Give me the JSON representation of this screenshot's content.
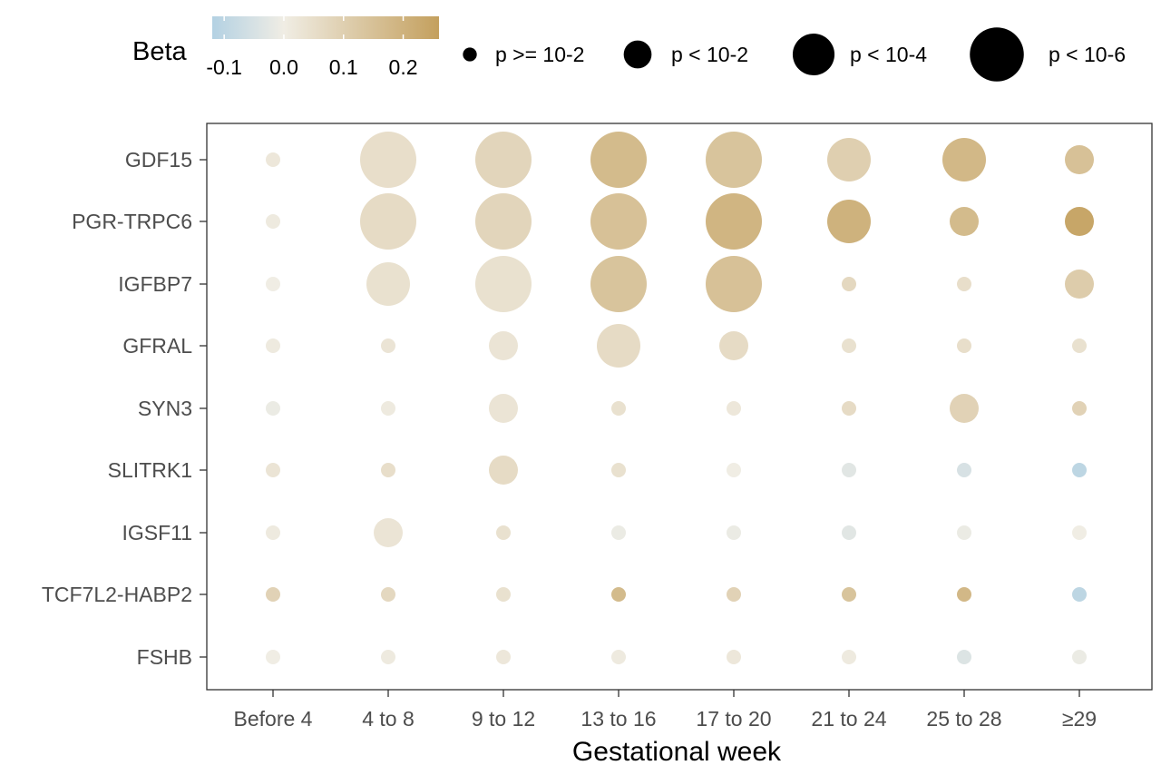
{
  "chart_data": {
    "type": "scatter",
    "xlabel": "Gestational week",
    "ylabel": "",
    "categories_x": [
      "Before 4",
      "4 to 8",
      "9 to 12",
      "13 to 16",
      "17 to 20",
      "21 to 24",
      "25 to 28",
      "≥29"
    ],
    "categories_y": [
      "GDF15",
      "PGR-TRPC6",
      "IGFBP7",
      "GFRAL",
      "SYN3",
      "SLITRK1",
      "IGSF11",
      "TCF7L2-HABP2",
      "FSHB"
    ],
    "grid": false,
    "color_legend": {
      "title": "Beta",
      "ticks": [
        "-0.1",
        "0.0",
        "0.1",
        "0.2"
      ],
      "tick_values": [
        -0.1,
        0.0,
        0.1,
        0.2
      ],
      "range": [
        -0.12,
        0.26
      ],
      "low_color": "#b3d1e3",
      "mid_color": "#f0ede4",
      "high_color": "#c4a05e"
    },
    "size_legend": {
      "levels": [
        1,
        2,
        3,
        4
      ],
      "labels": [
        "p >= 10-2",
        "p < 10-2",
        "p < 10-4",
        "p < 10-6"
      ]
    },
    "points": [
      {
        "gene": "GDF15",
        "week": "Before 4",
        "beta": 0.02,
        "p_level": 1
      },
      {
        "gene": "GDF15",
        "week": "4 to 8",
        "beta": 0.05,
        "p_level": 4
      },
      {
        "gene": "GDF15",
        "week": "9 to 12",
        "beta": 0.08,
        "p_level": 4
      },
      {
        "gene": "GDF15",
        "week": "13 to 16",
        "beta": 0.17,
        "p_level": 4
      },
      {
        "gene": "GDF15",
        "week": "17 to 20",
        "beta": 0.14,
        "p_level": 4
      },
      {
        "gene": "GDF15",
        "week": "21 to 24",
        "beta": 0.1,
        "p_level": 3
      },
      {
        "gene": "GDF15",
        "week": "25 to 28",
        "beta": 0.18,
        "p_level": 3
      },
      {
        "gene": "GDF15",
        "week": "≥29",
        "beta": 0.15,
        "p_level": 2
      },
      {
        "gene": "PGR-TRPC6",
        "week": "Before 4",
        "beta": 0.01,
        "p_level": 1
      },
      {
        "gene": "PGR-TRPC6",
        "week": "4 to 8",
        "beta": 0.06,
        "p_level": 4
      },
      {
        "gene": "PGR-TRPC6",
        "week": "9 to 12",
        "beta": 0.08,
        "p_level": 4
      },
      {
        "gene": "PGR-TRPC6",
        "week": "13 to 16",
        "beta": 0.15,
        "p_level": 4
      },
      {
        "gene": "PGR-TRPC6",
        "week": "17 to 20",
        "beta": 0.19,
        "p_level": 4
      },
      {
        "gene": "PGR-TRPC6",
        "week": "21 to 24",
        "beta": 0.2,
        "p_level": 3
      },
      {
        "gene": "PGR-TRPC6",
        "week": "25 to 28",
        "beta": 0.17,
        "p_level": 2
      },
      {
        "gene": "PGR-TRPC6",
        "week": "≥29",
        "beta": 0.24,
        "p_level": 2
      },
      {
        "gene": "IGFBP7",
        "week": "Before 4",
        "beta": 0.0,
        "p_level": 1
      },
      {
        "gene": "IGFBP7",
        "week": "4 to 8",
        "beta": 0.04,
        "p_level": 3
      },
      {
        "gene": "IGFBP7",
        "week": "9 to 12",
        "beta": 0.04,
        "p_level": 4
      },
      {
        "gene": "IGFBP7",
        "week": "13 to 16",
        "beta": 0.14,
        "p_level": 4
      },
      {
        "gene": "IGFBP7",
        "week": "17 to 20",
        "beta": 0.15,
        "p_level": 4
      },
      {
        "gene": "IGFBP7",
        "week": "21 to 24",
        "beta": 0.07,
        "p_level": 1
      },
      {
        "gene": "IGFBP7",
        "week": "25 to 28",
        "beta": 0.05,
        "p_level": 1
      },
      {
        "gene": "IGFBP7",
        "week": "≥29",
        "beta": 0.11,
        "p_level": 2
      },
      {
        "gene": "GFRAL",
        "week": "Before 4",
        "beta": 0.01,
        "p_level": 1
      },
      {
        "gene": "GFRAL",
        "week": "4 to 8",
        "beta": 0.03,
        "p_level": 1
      },
      {
        "gene": "GFRAL",
        "week": "9 to 12",
        "beta": 0.03,
        "p_level": 2
      },
      {
        "gene": "GFRAL",
        "week": "13 to 16",
        "beta": 0.06,
        "p_level": 3
      },
      {
        "gene": "GFRAL",
        "week": "17 to 20",
        "beta": 0.06,
        "p_level": 2
      },
      {
        "gene": "GFRAL",
        "week": "21 to 24",
        "beta": 0.04,
        "p_level": 1
      },
      {
        "gene": "GFRAL",
        "week": "25 to 28",
        "beta": 0.05,
        "p_level": 1
      },
      {
        "gene": "GFRAL",
        "week": "≥29",
        "beta": 0.04,
        "p_level": 1
      },
      {
        "gene": "SYN3",
        "week": "Before 4",
        "beta": -0.01,
        "p_level": 1
      },
      {
        "gene": "SYN3",
        "week": "4 to 8",
        "beta": 0.01,
        "p_level": 1
      },
      {
        "gene": "SYN3",
        "week": "9 to 12",
        "beta": 0.03,
        "p_level": 2
      },
      {
        "gene": "SYN3",
        "week": "13 to 16",
        "beta": 0.04,
        "p_level": 1
      },
      {
        "gene": "SYN3",
        "week": "17 to 20",
        "beta": 0.02,
        "p_level": 1
      },
      {
        "gene": "SYN3",
        "week": "21 to 24",
        "beta": 0.06,
        "p_level": 1
      },
      {
        "gene": "SYN3",
        "week": "25 to 28",
        "beta": 0.09,
        "p_level": 2
      },
      {
        "gene": "SYN3",
        "week": "≥29",
        "beta": 0.09,
        "p_level": 1
      },
      {
        "gene": "SLITRK1",
        "week": "Before 4",
        "beta": 0.03,
        "p_level": 1
      },
      {
        "gene": "SLITRK1",
        "week": "4 to 8",
        "beta": 0.05,
        "p_level": 1
      },
      {
        "gene": "SLITRK1",
        "week": "9 to 12",
        "beta": 0.06,
        "p_level": 2
      },
      {
        "gene": "SLITRK1",
        "week": "13 to 16",
        "beta": 0.04,
        "p_level": 1
      },
      {
        "gene": "SLITRK1",
        "week": "17 to 20",
        "beta": 0.0,
        "p_level": 1
      },
      {
        "gene": "SLITRK1",
        "week": "21 to 24",
        "beta": -0.03,
        "p_level": 1
      },
      {
        "gene": "SLITRK1",
        "week": "25 to 28",
        "beta": -0.05,
        "p_level": 1
      },
      {
        "gene": "SLITRK1",
        "week": "≥29",
        "beta": -0.1,
        "p_level": 1
      },
      {
        "gene": "IGSF11",
        "week": "Before 4",
        "beta": 0.01,
        "p_level": 1
      },
      {
        "gene": "IGSF11",
        "week": "4 to 8",
        "beta": 0.03,
        "p_level": 2
      },
      {
        "gene": "IGSF11",
        "week": "9 to 12",
        "beta": 0.04,
        "p_level": 1
      },
      {
        "gene": "IGSF11",
        "week": "13 to 16",
        "beta": -0.01,
        "p_level": 1
      },
      {
        "gene": "IGSF11",
        "week": "17 to 20",
        "beta": -0.01,
        "p_level": 1
      },
      {
        "gene": "IGSF11",
        "week": "21 to 24",
        "beta": -0.03,
        "p_level": 1
      },
      {
        "gene": "IGSF11",
        "week": "25 to 28",
        "beta": -0.01,
        "p_level": 1
      },
      {
        "gene": "IGSF11",
        "week": "≥29",
        "beta": 0.0,
        "p_level": 1
      },
      {
        "gene": "TCF7L2-HABP2",
        "week": "Before 4",
        "beta": 0.09,
        "p_level": 1
      },
      {
        "gene": "TCF7L2-HABP2",
        "week": "4 to 8",
        "beta": 0.07,
        "p_level": 1
      },
      {
        "gene": "TCF7L2-HABP2",
        "week": "9 to 12",
        "beta": 0.04,
        "p_level": 1
      },
      {
        "gene": "TCF7L2-HABP2",
        "week": "13 to 16",
        "beta": 0.17,
        "p_level": 1
      },
      {
        "gene": "TCF7L2-HABP2",
        "week": "17 to 20",
        "beta": 0.09,
        "p_level": 1
      },
      {
        "gene": "TCF7L2-HABP2",
        "week": "21 to 24",
        "beta": 0.14,
        "p_level": 1
      },
      {
        "gene": "TCF7L2-HABP2",
        "week": "25 to 28",
        "beta": 0.18,
        "p_level": 1
      },
      {
        "gene": "TCF7L2-HABP2",
        "week": "≥29",
        "beta": -0.1,
        "p_level": 1
      },
      {
        "gene": "FSHB",
        "week": "Before 4",
        "beta": 0.0,
        "p_level": 1
      },
      {
        "gene": "FSHB",
        "week": "4 to 8",
        "beta": 0.01,
        "p_level": 1
      },
      {
        "gene": "FSHB",
        "week": "9 to 12",
        "beta": 0.02,
        "p_level": 1
      },
      {
        "gene": "FSHB",
        "week": "13 to 16",
        "beta": 0.01,
        "p_level": 1
      },
      {
        "gene": "FSHB",
        "week": "17 to 20",
        "beta": 0.02,
        "p_level": 1
      },
      {
        "gene": "FSHB",
        "week": "21 to 24",
        "beta": 0.01,
        "p_level": 1
      },
      {
        "gene": "FSHB",
        "week": "25 to 28",
        "beta": -0.04,
        "p_level": 1
      },
      {
        "gene": "FSHB",
        "week": "≥29",
        "beta": -0.01,
        "p_level": 1
      }
    ]
  }
}
